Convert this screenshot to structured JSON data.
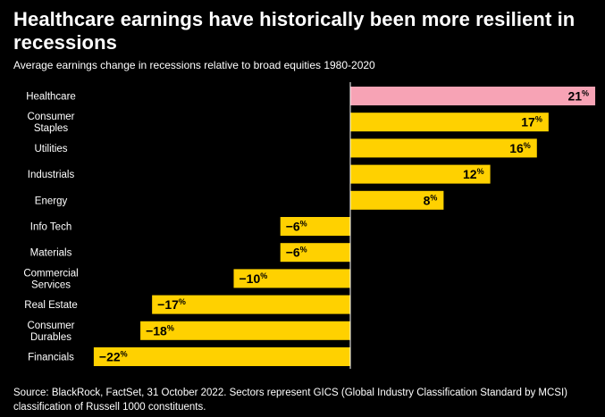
{
  "title": "Healthcare earnings have historically been more resilient in recessions",
  "subtitle": "Average earnings change in recessions relative to broad equities 1980-2020",
  "source": "Source: BlackRock, FactSet, 31 October 2022. Sectors represent GICS (Global Industry Classification Standard by MCSI) classification of Russell 1000 constituents.",
  "colors": {
    "highlight": "#f7a3b5",
    "bar": "#ffd100",
    "background": "#000000",
    "text": "#ffffff",
    "label": "#000000"
  },
  "chart_data": {
    "type": "bar",
    "orientation": "horizontal",
    "title": "Healthcare earnings have historically been more resilient in recessions",
    "subtitle": "Average earnings change in recessions relative to broad equities 1980-2020",
    "categories": [
      [
        "Healthcare"
      ],
      [
        "Consumer",
        "Staples"
      ],
      [
        "Utilities"
      ],
      [
        "Industrials"
      ],
      [
        "Energy"
      ],
      [
        "Info Tech"
      ],
      [
        "Materials"
      ],
      [
        "Commercial",
        "Services"
      ],
      [
        "Real Estate"
      ],
      [
        "Consumer",
        "Durables"
      ],
      [
        "Financials"
      ]
    ],
    "values": [
      21,
      17,
      16,
      12,
      8,
      -6,
      -6,
      -10,
      -17,
      -18,
      -22
    ],
    "value_labels": [
      "21",
      "17",
      "16",
      "12",
      "8",
      "-6",
      "-6",
      "-10",
      "-17",
      "-18",
      "-22"
    ],
    "unit": "%",
    "highlight_index": 0,
    "xlim": [
      -22,
      21
    ]
  }
}
